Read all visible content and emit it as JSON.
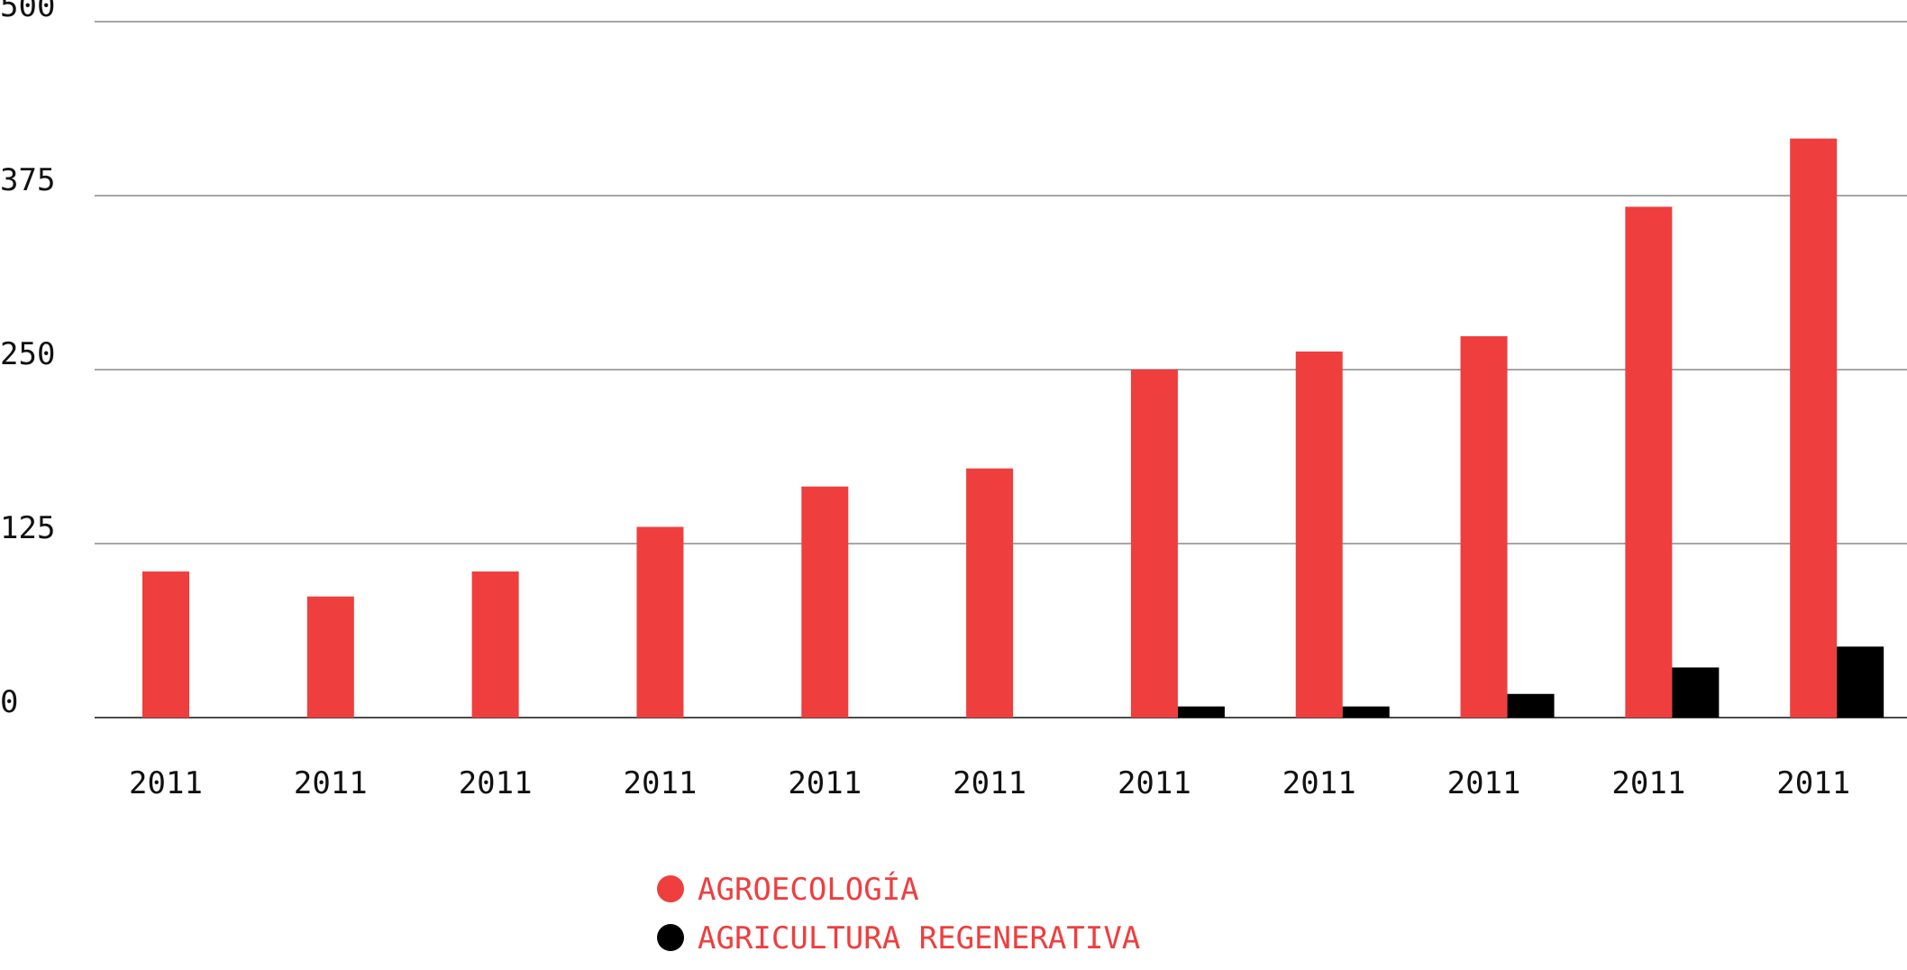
{
  "chart_data": {
    "type": "bar",
    "categories": [
      "2011",
      "2011",
      "2011",
      "2011",
      "2011",
      "2011",
      "2011",
      "2011",
      "2011",
      "2011",
      "2011"
    ],
    "series": [
      {
        "name": "AGROECOLOGÍA",
        "color": "#ef3e3e",
        "values": [
          105,
          87,
          105,
          137,
          166,
          179,
          250,
          263,
          274,
          367,
          416
        ]
      },
      {
        "name": "AGRICULTURA REGENERATIVA",
        "color": "#000000",
        "values": [
          0,
          0,
          0,
          0,
          0,
          0,
          8,
          8,
          17,
          36,
          51
        ]
      }
    ],
    "ylim": [
      0,
      500
    ],
    "yticks": [
      0,
      125,
      250,
      375,
      500
    ],
    "grid": true
  }
}
